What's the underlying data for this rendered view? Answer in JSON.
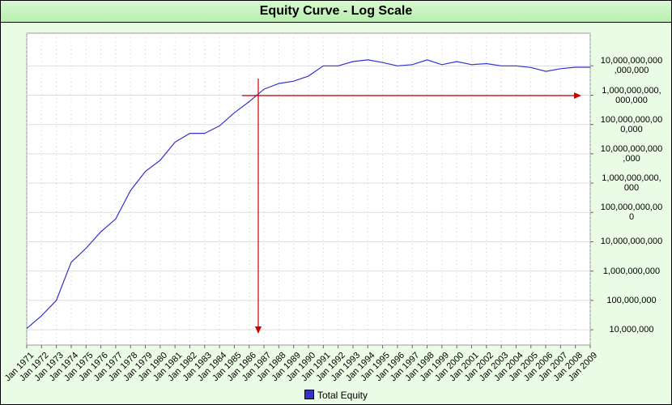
{
  "chart_data": {
    "type": "line",
    "title": "Equity Curve - Log Scale",
    "x": [
      "Jan 1971",
      "Jan 1972",
      "Jan 1973",
      "Jan 1974",
      "Jan 1975",
      "Jan 1976",
      "Jan 1977",
      "Jan 1978",
      "Jan 1979",
      "Jan 1980",
      "Jan 1981",
      "Jan 1982",
      "Jan 1983",
      "Jan 1984",
      "Jan 1985",
      "Jan 1986",
      "Jan 1987",
      "Jan 1988",
      "Jan 1989",
      "Jan 1990",
      "Jan 1991",
      "Jan 1992",
      "Jan 1993",
      "Jan 1994",
      "Jan 1995",
      "Jan 1996",
      "Jan 1997",
      "Jan 1998",
      "Jan 1999",
      "Jan 2000",
      "Jan 2001",
      "Jan 2002",
      "Jan 2003",
      "Jan 2004",
      "Jan 2005",
      "Jan 2006",
      "Jan 2007",
      "Jan 2008",
      "Jan 2009"
    ],
    "series": [
      {
        "name": "Total Equity",
        "color": "#3333cc",
        "values": [
          11000000,
          30000000,
          100000000,
          2000000000,
          6000000000,
          22000000000,
          60000000000,
          560000000000,
          2500000000000,
          6000000000000,
          25000000000000,
          50000000000000,
          50000000000000,
          90000000000000,
          250000000000000,
          600000000000000,
          1600000000000000,
          2500000000000000,
          3000000000000000,
          4500000000000000,
          10000000000000000,
          10000000000000000,
          14000000000000000,
          16000000000000000,
          13000000000000000,
          10000000000000000,
          11000000000000000,
          16000000000000000,
          11000000000000000,
          14000000000000000,
          11000000000000000,
          12000000000000000,
          10000000000000000,
          10000000000000000,
          8800000000000000,
          6500000000000000,
          8000000000000000,
          9000000000000000,
          9000000000000000
        ]
      }
    ],
    "ylim": [
      3000000,
      130000000000000000
    ],
    "log_scale": true,
    "grid": true,
    "yticks": [
      {
        "value": 10000000,
        "label": "10,000,000"
      },
      {
        "value": 100000000,
        "label": "100,000,000"
      },
      {
        "value": 1000000000,
        "label": "1,000,000,000"
      },
      {
        "value": 10000000000,
        "label": "10,000,000,000"
      },
      {
        "value": 100000000000,
        "label": "100,000,000,00\n0"
      },
      {
        "value": 1000000000000,
        "label": "1,000,000,000,\n000"
      },
      {
        "value": 10000000000000,
        "label": "10,000,000,000\n,000"
      },
      {
        "value": 100000000000000,
        "label": "100,000,000,00\n0,000"
      },
      {
        "value": 1000000000000000,
        "label": "1,000,000,000,\n000,000"
      },
      {
        "value": 10000000000000000,
        "label": "10,000,000,000\n,000,000"
      }
    ],
    "legend": "bottom"
  }
}
